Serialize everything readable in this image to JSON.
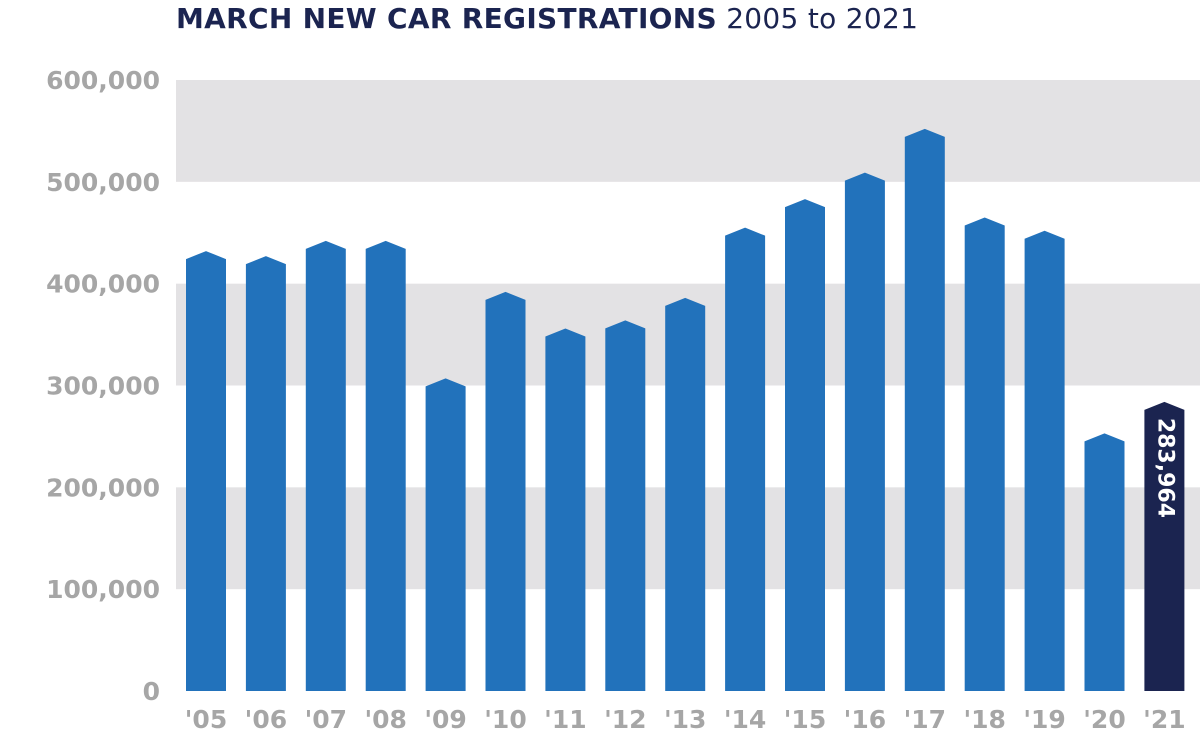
{
  "title": {
    "main": "MARCH NEW CAR REGISTRATIONS",
    "range": "2005 to 2021"
  },
  "colors": {
    "bar": "#2272bb",
    "highlight": "#1b2450",
    "band": "#e3e2e4",
    "tick": "#a6a6a6"
  },
  "chart_data": {
    "type": "bar",
    "title": "MARCH NEW CAR REGISTRATIONS 2005 to 2021",
    "xlabel": "",
    "ylabel": "",
    "categories": [
      "'05",
      "'06",
      "'07",
      "'08",
      "'09",
      "'10",
      "'11",
      "'12",
      "'13",
      "'14",
      "'15",
      "'16",
      "'17",
      "'18",
      "'19",
      "'20",
      "'21"
    ],
    "values": [
      432000,
      427000,
      442000,
      442000,
      307000,
      392000,
      356000,
      364000,
      386000,
      455000,
      483000,
      509000,
      552000,
      465000,
      452000,
      253000,
      283964
    ],
    "highlight_index": 16,
    "data_labels": [
      {
        "index": 16,
        "text": "283,964"
      }
    ],
    "ylim": [
      0,
      600000
    ],
    "yticks": [
      0,
      100000,
      200000,
      300000,
      400000,
      500000,
      600000
    ],
    "ytick_labels": [
      "0",
      "100,000",
      "200,000",
      "300,000",
      "400,000",
      "500,000",
      "600,000"
    ],
    "grid": "alternating horizontal bands",
    "legend": "none"
  }
}
